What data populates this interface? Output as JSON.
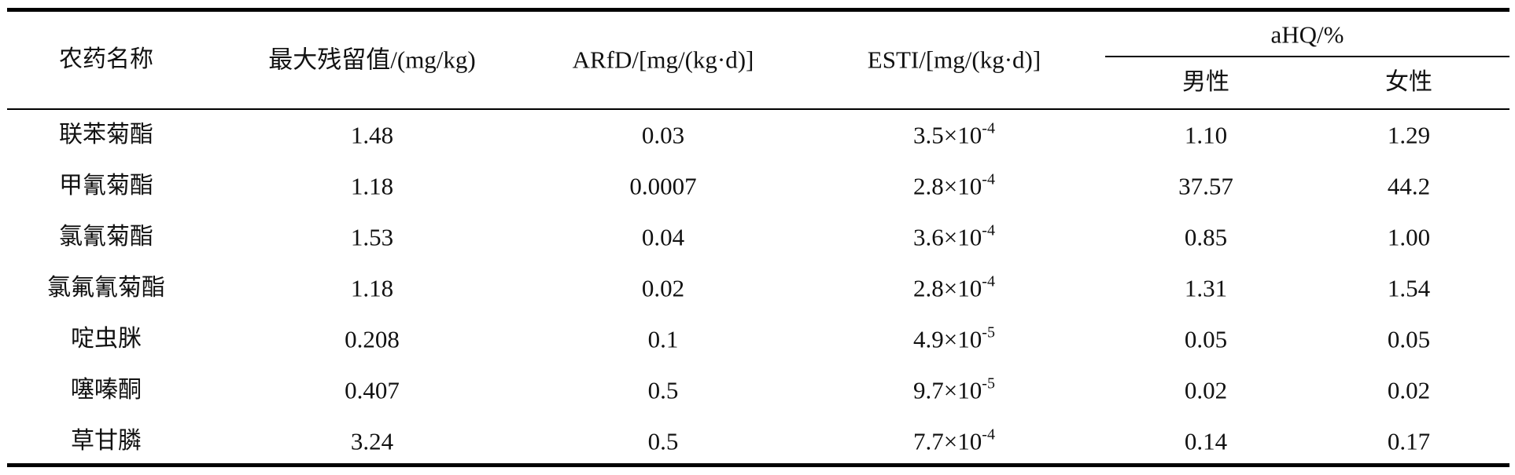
{
  "table": {
    "headers": {
      "pesticide": "农药名称",
      "mrl": "最大残留值/(mg/kg)",
      "arfd": "ARfD/[mg/(kg·d)]",
      "esti": "ESTI/[mg/(kg·d)]",
      "ahq": "aHQ/%",
      "male": "男性",
      "female": "女性"
    },
    "rows": [
      {
        "name": "联苯菊酯",
        "mrl": "1.48",
        "arfd": "0.03",
        "esti_base": "3.5×10",
        "esti_exp": "-4",
        "male": "1.10",
        "female": "1.29"
      },
      {
        "name": "甲氰菊酯",
        "mrl": "1.18",
        "arfd": "0.0007",
        "esti_base": "2.8×10",
        "esti_exp": "-4",
        "male": "37.57",
        "female": "44.2"
      },
      {
        "name": "氯氰菊酯",
        "mrl": "1.53",
        "arfd": "0.04",
        "esti_base": "3.6×10",
        "esti_exp": "-4",
        "male": "0.85",
        "female": "1.00"
      },
      {
        "name": "氯氟氰菊酯",
        "mrl": "1.18",
        "arfd": "0.02",
        "esti_base": "2.8×10",
        "esti_exp": "-4",
        "male": "1.31",
        "female": "1.54"
      },
      {
        "name": "啶虫脒",
        "mrl": "0.208",
        "arfd": "0.1",
        "esti_base": "4.9×10",
        "esti_exp": "-5",
        "male": "0.05",
        "female": "0.05"
      },
      {
        "name": "噻嗪酮",
        "mrl": "0.407",
        "arfd": "0.5",
        "esti_base": "9.7×10",
        "esti_exp": "-5",
        "male": "0.02",
        "female": "0.02"
      },
      {
        "name": "草甘膦",
        "mrl": "3.24",
        "arfd": "0.5",
        "esti_base": "7.7×10",
        "esti_exp": "-4",
        "male": "0.14",
        "female": "0.17"
      }
    ]
  }
}
